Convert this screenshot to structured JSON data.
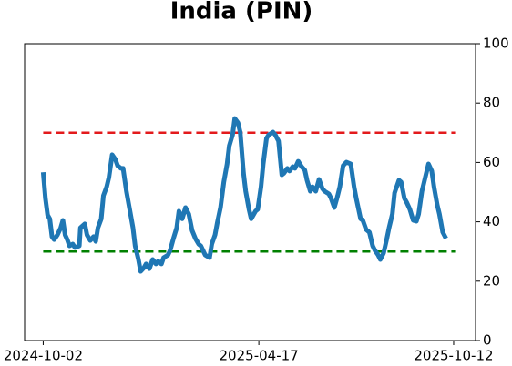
{
  "chart_data": {
    "type": "line",
    "title": "India (PIN)",
    "x": [
      "2024-10-02",
      "2024-10-04",
      "2024-10-06",
      "2024-10-08",
      "2024-10-10",
      "2024-10-12",
      "2024-10-15",
      "2024-10-18",
      "2024-10-20",
      "2024-10-22",
      "2024-10-24",
      "2024-10-26",
      "2024-10-29",
      "2024-10-31",
      "2024-11-04",
      "2024-11-05",
      "2024-11-09",
      "2024-11-11",
      "2024-11-14",
      "2024-11-17",
      "2024-11-19",
      "2024-11-21",
      "2024-11-24",
      "2024-11-26",
      "2024-11-29",
      "2024-12-01",
      "2024-12-04",
      "2024-12-07",
      "2024-12-09",
      "2024-12-12",
      "2024-12-14",
      "2024-12-17",
      "2024-12-20",
      "2024-12-23",
      "2024-12-25",
      "2024-12-28",
      "2024-12-30",
      "2025-01-02",
      "2025-01-04",
      "2025-01-07",
      "2025-01-10",
      "2025-01-13",
      "2025-01-15",
      "2025-01-18",
      "2025-01-20",
      "2025-01-24",
      "2025-01-26",
      "2025-01-29",
      "2025-02-01",
      "2025-02-03",
      "2025-02-06",
      "2025-02-09",
      "2025-02-12",
      "2025-02-15",
      "2025-02-18",
      "2025-02-21",
      "2025-02-23",
      "2025-02-27",
      "2025-03-03",
      "2025-03-05",
      "2025-03-08",
      "2025-03-10",
      "2025-03-13",
      "2025-03-16",
      "2025-03-19",
      "2025-03-21",
      "2025-03-24",
      "2025-03-26",
      "2025-03-29",
      "2025-03-31",
      "2025-04-03",
      "2025-04-05",
      "2025-04-08",
      "2025-04-10",
      "2025-04-14",
      "2025-04-16",
      "2025-04-19",
      "2025-04-21",
      "2025-04-24",
      "2025-04-26",
      "2025-04-30",
      "2025-05-02",
      "2025-05-05",
      "2025-05-08",
      "2025-05-10",
      "2025-05-13",
      "2025-05-15",
      "2025-05-18",
      "2025-05-20",
      "2025-05-23",
      "2025-05-26",
      "2025-05-29",
      "2025-05-31",
      "2025-06-03",
      "2025-06-05",
      "2025-06-08",
      "2025-06-11",
      "2025-06-14",
      "2025-06-16",
      "2025-06-20",
      "2025-06-22",
      "2025-06-25",
      "2025-06-28",
      "2025-06-30",
      "2025-07-03",
      "2025-07-06",
      "2025-07-10",
      "2025-07-13",
      "2025-07-15",
      "2025-07-19",
      "2025-07-21",
      "2025-07-24",
      "2025-07-27",
      "2025-07-30",
      "2025-08-01",
      "2025-08-04",
      "2025-08-06",
      "2025-08-09",
      "2025-08-12",
      "2025-08-14",
      "2025-08-17",
      "2025-08-19",
      "2025-08-23",
      "2025-08-25",
      "2025-08-28",
      "2025-08-30",
      "2025-09-02",
      "2025-09-05",
      "2025-09-08",
      "2025-09-10",
      "2025-09-13",
      "2025-09-16",
      "2025-09-19",
      "2025-09-22",
      "2025-09-24",
      "2025-09-27",
      "2025-09-29",
      "2025-10-02",
      "2025-10-05"
    ],
    "series": [
      {
        "color": "#1f77b4",
        "values": [
          56.7,
          47.9,
          42.3,
          41,
          35,
          34,
          35.6,
          38,
          40.5,
          35.6,
          34,
          31.9,
          32.5,
          31.3,
          31.9,
          38,
          39.3,
          35.6,
          33.7,
          35,
          33.4,
          38,
          41,
          48.8,
          51.8,
          54.9,
          62.6,
          61,
          58.9,
          58,
          58,
          50.3,
          44.2,
          38,
          31.9,
          27.3,
          23.3,
          24.5,
          25.8,
          24.2,
          27.3,
          25.8,
          26.7,
          25.8,
          27.9,
          28.8,
          30.4,
          34.4,
          38,
          43.6,
          41,
          44.8,
          42.6,
          37.1,
          34.4,
          32.5,
          31.9,
          28.8,
          27.9,
          32.5,
          35.6,
          39.6,
          44.8,
          53.4,
          59.5,
          65.6,
          69.3,
          74.8,
          73.3,
          70.2,
          56.4,
          50.3,
          44.2,
          41,
          43.6,
          44.2,
          51.8,
          59.5,
          68.1,
          69.3,
          70.2,
          69.3,
          67.2,
          55.8,
          56.4,
          58,
          57.1,
          58.6,
          58,
          60.4,
          58.6,
          57.4,
          54,
          50.3,
          51.8,
          50.3,
          54.3,
          51.2,
          50.3,
          49.4,
          47.9,
          44.8,
          48.8,
          51.8,
          58.9,
          60.1,
          59.5,
          51.8,
          47.9,
          41,
          40.5,
          37.4,
          36.5,
          31.9,
          30.4,
          28.8,
          27.3,
          29.5,
          34.4,
          38,
          42.6,
          49.7,
          54,
          53.4,
          47.9,
          46.6,
          44.2,
          40.5,
          40.2,
          42.6,
          50.3,
          54.9,
          59.5,
          57.1,
          51.8,
          45.7,
          42.6,
          36.5,
          34.4
        ]
      }
    ],
    "hlines": [
      {
        "value": 70,
        "color": "#e31a1c"
      },
      {
        "value": 30,
        "color": "#008000"
      }
    ],
    "xlim": [
      "2024-09-15",
      "2025-11-01"
    ],
    "xticks": [
      "2024-10-02",
      "2025-04-17",
      "2025-10-12"
    ],
    "ylim": [
      0,
      100
    ],
    "yticks": [
      0,
      20,
      40,
      60,
      80,
      100
    ],
    "y_axis_side": "right"
  }
}
